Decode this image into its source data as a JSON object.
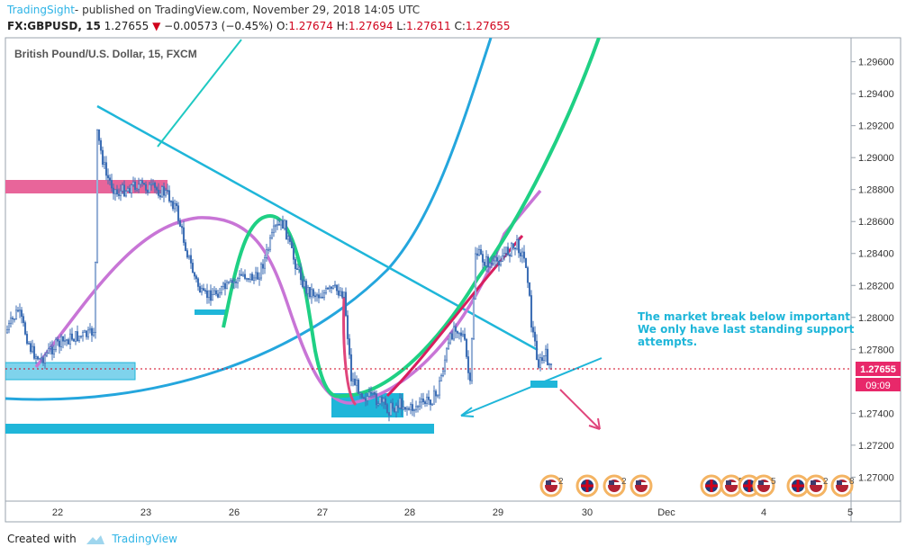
{
  "header": {
    "brand": "TradingSight",
    "published_text": "published on TradingView.com, November 29, 2018 14:05 UTC",
    "symbol": "FX:GBPUSD, 15",
    "last": "1.27655",
    "change": "−0.00573 (−0.45%)",
    "open_label": "O:",
    "open": "1.27674",
    "high_label": "H:",
    "high": "1.27694",
    "low_label": "L:",
    "low": "1.27611",
    "close_label": "C:",
    "close": "1.27655"
  },
  "footer": {
    "created_with": "Created with",
    "tradingview": "TradingView"
  },
  "chart_data": {
    "type": "candlestick",
    "title": "British Pound/U.S. Dollar, 15, FXCM",
    "y_ticks": [
      "1.29600",
      "1.29400",
      "1.29200",
      "1.29000",
      "1.28800",
      "1.28600",
      "1.28400",
      "1.28200",
      "1.28000",
      "1.27800",
      "1.27400",
      "1.27200",
      "1.27000"
    ],
    "x_ticks": [
      "22",
      "23",
      "26",
      "27",
      "28",
      "29",
      "30",
      "Dec",
      "4",
      "5"
    ],
    "ylim": [
      1.2685,
      1.2975
    ],
    "last_price_label": "1.27655",
    "countdown_label": "09:09",
    "annotation": [
      "The market break below important",
      "We only have last standing support",
      "attempts."
    ],
    "event_counts": [
      "2",
      "2",
      "2",
      "5",
      "5",
      "2",
      "2",
      "8"
    ],
    "colors": {
      "up": "#26a69a",
      "candle": "#3f6fb5",
      "cyan": "#1fb6d9",
      "green": "#1fd084",
      "purple": "#c875d6",
      "pink": "#e0457b",
      "crimson": "#d81f5f",
      "blue_arc": "#24a6dd"
    }
  }
}
